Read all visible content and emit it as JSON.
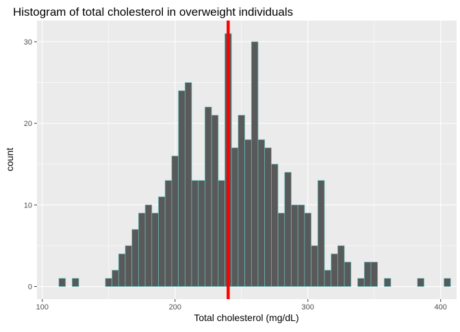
{
  "chart_data": {
    "type": "bar",
    "title": "Histogram of total cholesterol in overweight individuals",
    "xlabel": "Total cholesterol (mg/dL)",
    "ylabel": "count",
    "xlim": [
      96,
      412
    ],
    "ylim": [
      -1.55,
      32.6
    ],
    "x_ticks": [
      100,
      200,
      300,
      400
    ],
    "y_ticks": [
      0,
      10,
      20,
      30
    ],
    "bin_width": 5,
    "bin_centers": [
      115,
      120,
      125,
      130,
      135,
      140,
      145,
      150,
      155,
      160,
      165,
      170,
      175,
      180,
      185,
      190,
      195,
      200,
      205,
      210,
      215,
      220,
      225,
      230,
      235,
      240,
      245,
      250,
      255,
      260,
      265,
      270,
      275,
      280,
      285,
      290,
      295,
      300,
      305,
      310,
      315,
      320,
      325,
      330,
      335,
      340,
      345,
      350,
      355,
      360,
      365,
      370,
      375,
      380,
      385,
      390,
      395,
      400,
      405
    ],
    "values": [
      1,
      0,
      1,
      0,
      0,
      0,
      0,
      1,
      2,
      4,
      5,
      7,
      9,
      10,
      9,
      11,
      13,
      16,
      24,
      25,
      13,
      13,
      22,
      21,
      13,
      31,
      17,
      21,
      18,
      30,
      18,
      17,
      15,
      9,
      14,
      10,
      10,
      9,
      5,
      13,
      2,
      4,
      5,
      3,
      0,
      1,
      3,
      3,
      0,
      1,
      0,
      0,
      0,
      0,
      1,
      0,
      0,
      0,
      1
    ],
    "vline": {
      "x": 240,
      "color": "#ff0000"
    },
    "colors": {
      "bar_fill": "#595959",
      "bar_outline": "#66c2c2",
      "panel_bg": "#ebebeb",
      "grid": "#ffffff"
    },
    "grid": true
  }
}
